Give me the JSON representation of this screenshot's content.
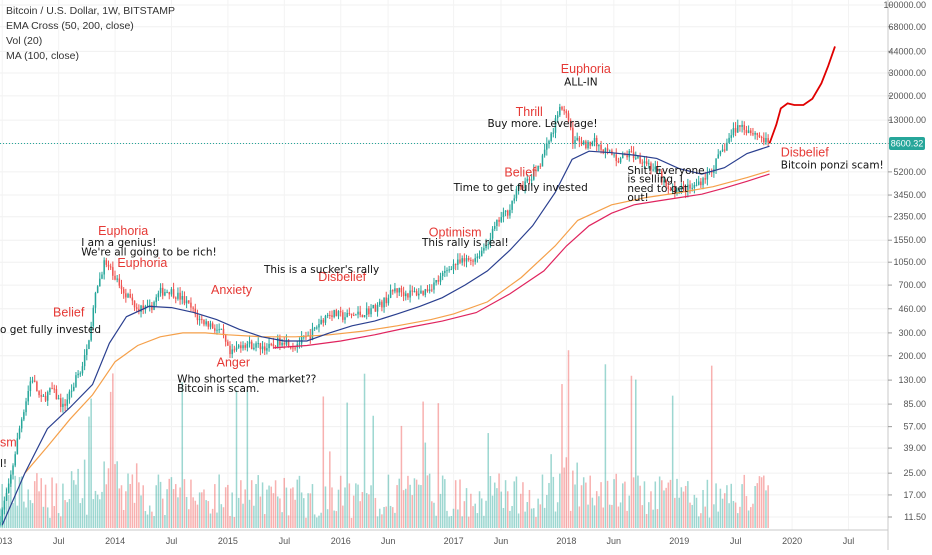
{
  "legend": {
    "symbol": "Bitcoin / U.S. Dollar, 1W, BITSTAMP",
    "ema": "EMA Cross (50, 200, close)",
    "vol": "Vol (20)",
    "ma": "MA (100, close)"
  },
  "price_label": "8600.32",
  "colors": {
    "up": "#26a69a",
    "down": "#ef5350",
    "ema50": "#2a3f8f",
    "ema200": "#f5a04a",
    "ma100": "#e0245e",
    "projection": "#e00000",
    "annotation_red": "#e53935",
    "price_line": "#26a69a"
  },
  "chart_data": {
    "type": "candlestick",
    "y_scale": "log",
    "ylim": [
      9,
      110000
    ],
    "y_ticks": [
      "100000.00",
      "68000.00",
      "44000.00",
      "30000.00",
      "20000.00",
      "13000.00",
      "8600.32",
      "5200.00",
      "3450.00",
      "2350.00",
      "1550.00",
      "1050.00",
      "700.00",
      "460.00",
      "300.00",
      "200.00",
      "130.00",
      "85.00",
      "57.00",
      "39.00",
      "25.00",
      "17.00",
      "11.50"
    ],
    "x_ticks": [
      "2013",
      "Jul",
      "2014",
      "Jul",
      "2015",
      "Jul",
      "2016",
      "Jun",
      "2017",
      "Jun",
      "2018",
      "Jun",
      "2019",
      "Jul",
      "2020",
      "Jul"
    ],
    "x_tick_dates": [
      2013.0,
      2013.5,
      2014.0,
      2014.5,
      2015.0,
      2015.5,
      2016.0,
      2016.42,
      2017.0,
      2017.42,
      2018.0,
      2018.42,
      2019.0,
      2019.5,
      2020.0,
      2020.5
    ],
    "price_path": [
      [
        2012.98,
        10
      ],
      [
        2013.08,
        20
      ],
      [
        2013.18,
        60
      ],
      [
        2013.28,
        140
      ],
      [
        2013.36,
        90
      ],
      [
        2013.46,
        110
      ],
      [
        2013.56,
        80
      ],
      [
        2013.66,
        125
      ],
      [
        2013.76,
        200
      ],
      [
        2013.85,
        600
      ],
      [
        2013.92,
        1050
      ],
      [
        2014.02,
        800
      ],
      [
        2014.12,
        600
      ],
      [
        2014.22,
        470
      ],
      [
        2014.32,
        450
      ],
      [
        2014.42,
        620
      ],
      [
        2014.5,
        640
      ],
      [
        2014.6,
        560
      ],
      [
        2014.68,
        480
      ],
      [
        2014.76,
        380
      ],
      [
        2014.86,
        350
      ],
      [
        2014.96,
        300
      ],
      [
        2015.04,
        200
      ],
      [
        2015.14,
        250
      ],
      [
        2015.26,
        240
      ],
      [
        2015.4,
        230
      ],
      [
        2015.5,
        270
      ],
      [
        2015.6,
        240
      ],
      [
        2015.74,
        280
      ],
      [
        2015.84,
        370
      ],
      [
        2015.92,
        430
      ],
      [
        2016.04,
        400
      ],
      [
        2016.2,
        420
      ],
      [
        2016.38,
        500
      ],
      [
        2016.5,
        650
      ],
      [
        2016.6,
        600
      ],
      [
        2016.75,
        620
      ],
      [
        2016.9,
        780
      ],
      [
        2017.0,
        1000
      ],
      [
        2017.1,
        1050
      ],
      [
        2017.22,
        1150
      ],
      [
        2017.3,
        1400
      ],
      [
        2017.42,
        2200
      ],
      [
        2017.5,
        2600
      ],
      [
        2017.6,
        4000
      ],
      [
        2017.7,
        4500
      ],
      [
        2017.8,
        6500
      ],
      [
        2017.9,
        11000
      ],
      [
        2017.96,
        17000
      ],
      [
        2018.02,
        14000
      ],
      [
        2018.08,
        9000
      ],
      [
        2018.18,
        8500
      ],
      [
        2018.26,
        9000
      ],
      [
        2018.38,
        7400
      ],
      [
        2018.48,
        6500
      ],
      [
        2018.58,
        7200
      ],
      [
        2018.7,
        6500
      ],
      [
        2018.84,
        5000
      ],
      [
        2018.92,
        3700
      ],
      [
        2019.0,
        3800
      ],
      [
        2019.14,
        3900
      ],
      [
        2019.3,
        5300
      ],
      [
        2019.42,
        8000
      ],
      [
        2019.5,
        10800
      ],
      [
        2019.56,
        12000
      ],
      [
        2019.64,
        10800
      ],
      [
        2019.72,
        10000
      ],
      [
        2019.8,
        8600
      ]
    ],
    "ema50_path": [
      [
        2013.0,
        10
      ],
      [
        2013.2,
        25
      ],
      [
        2013.4,
        55
      ],
      [
        2013.6,
        80
      ],
      [
        2013.8,
        120
      ],
      [
        2013.95,
        250
      ],
      [
        2014.1,
        400
      ],
      [
        2014.3,
        480
      ],
      [
        2014.5,
        470
      ],
      [
        2014.7,
        430
      ],
      [
        2014.9,
        380
      ],
      [
        2015.1,
        320
      ],
      [
        2015.3,
        280
      ],
      [
        2015.5,
        260
      ],
      [
        2015.7,
        260
      ],
      [
        2015.9,
        300
      ],
      [
        2016.1,
        340
      ],
      [
        2016.3,
        370
      ],
      [
        2016.5,
        420
      ],
      [
        2016.7,
        480
      ],
      [
        2016.9,
        560
      ],
      [
        2017.1,
        700
      ],
      [
        2017.3,
        900
      ],
      [
        2017.5,
        1300
      ],
      [
        2017.7,
        2000
      ],
      [
        2017.9,
        3600
      ],
      [
        2018.05,
        6500
      ],
      [
        2018.2,
        7500
      ],
      [
        2018.4,
        7300
      ],
      [
        2018.6,
        7000
      ],
      [
        2018.8,
        6600
      ],
      [
        2019.0,
        5500
      ],
      [
        2019.2,
        5000
      ],
      [
        2019.4,
        5600
      ],
      [
        2019.6,
        7200
      ],
      [
        2019.8,
        8200
      ]
    ],
    "ema200_path": [
      [
        2013.2,
        25
      ],
      [
        2013.4,
        40
      ],
      [
        2013.6,
        65
      ],
      [
        2013.8,
        100
      ],
      [
        2014.0,
        180
      ],
      [
        2014.2,
        240
      ],
      [
        2014.4,
        280
      ],
      [
        2014.6,
        300
      ],
      [
        2014.8,
        300
      ],
      [
        2015.0,
        290
      ],
      [
        2015.3,
        280
      ],
      [
        2015.6,
        280
      ],
      [
        2015.9,
        290
      ],
      [
        2016.2,
        310
      ],
      [
        2016.5,
        340
      ],
      [
        2016.8,
        380
      ],
      [
        2017.0,
        420
      ],
      [
        2017.3,
        520
      ],
      [
        2017.6,
        800
      ],
      [
        2017.9,
        1400
      ],
      [
        2018.1,
        2200
      ],
      [
        2018.4,
        2900
      ],
      [
        2018.7,
        3300
      ],
      [
        2019.0,
        3600
      ],
      [
        2019.3,
        4000
      ],
      [
        2019.6,
        4700
      ],
      [
        2019.8,
        5300
      ]
    ],
    "ma100_path": [
      [
        2015.4,
        230
      ],
      [
        2015.7,
        240
      ],
      [
        2016.0,
        260
      ],
      [
        2016.3,
        290
      ],
      [
        2016.6,
        330
      ],
      [
        2016.9,
        370
      ],
      [
        2017.2,
        430
      ],
      [
        2017.5,
        600
      ],
      [
        2017.8,
        900
      ],
      [
        2018.0,
        1400
      ],
      [
        2018.2,
        2000
      ],
      [
        2018.4,
        2500
      ],
      [
        2018.6,
        2900
      ],
      [
        2018.8,
        3100
      ],
      [
        2019.0,
        3300
      ],
      [
        2019.2,
        3500
      ],
      [
        2019.4,
        3900
      ],
      [
        2019.6,
        4400
      ],
      [
        2019.8,
        5000
      ]
    ],
    "projection_path": [
      [
        2019.8,
        8600
      ],
      [
        2019.86,
        12000
      ],
      [
        2019.9,
        16000
      ],
      [
        2019.96,
        17500
      ],
      [
        2020.02,
        17000
      ],
      [
        2020.1,
        17000
      ],
      [
        2020.18,
        19000
      ],
      [
        2020.26,
        25000
      ],
      [
        2020.32,
        34000
      ],
      [
        2020.38,
        48000
      ]
    ],
    "annotations": {
      "red": [
        {
          "text": "Euphoria",
          "x": 2013.85,
          "y": 1700
        },
        {
          "text": "Euphoria",
          "x": 2014.02,
          "y": 960
        },
        {
          "text": "Anxiety",
          "x": 2014.85,
          "y": 600
        },
        {
          "text": "Disbelief",
          "x": 2015.8,
          "y": 750
        },
        {
          "text": "Belief",
          "x": 2013.45,
          "y": 400
        },
        {
          "text": "Anger",
          "x": 2014.9,
          "y": 165
        },
        {
          "text": "Optimism",
          "x": 2016.78,
          "y": 1650
        },
        {
          "text": "Belief",
          "x": 2017.45,
          "y": 4800
        },
        {
          "text": "Thrill",
          "x": 2017.55,
          "y": 14000
        },
        {
          "text": "Euphoria",
          "x": 2017.95,
          "y": 30000
        },
        {
          "text": "Disbelief",
          "x": 2019.9,
          "y": 6800
        },
        {
          "text": "sm",
          "x": 2012.98,
          "y": 40
        }
      ],
      "black": [
        {
          "text": "I am a genius!",
          "x": 2013.7,
          "y": 1400
        },
        {
          "text": "We're all going to be rich!",
          "x": 2013.7,
          "y": 1180
        },
        {
          "text": "This is a sucker's rally",
          "x": 2015.32,
          "y": 870
        },
        {
          "text": "o get fully invested",
          "x": 2012.98,
          "y": 300
        },
        {
          "text": "Who shorted the market??",
          "x": 2014.55,
          "y": 125
        },
        {
          "text": "Bitcoin is scam.",
          "x": 2014.55,
          "y": 105
        },
        {
          "text": "This rally is real!",
          "x": 2016.72,
          "y": 1400
        },
        {
          "text": "Time to get fully invested",
          "x": 2017.0,
          "y": 3700
        },
        {
          "text": "Buy more. Leverage!",
          "x": 2017.3,
          "y": 11500
        },
        {
          "text": "ALL-IN",
          "x": 2017.98,
          "y": 24000
        },
        {
          "text": "Shit! Everyone",
          "x": 2018.54,
          "y": 5000
        },
        {
          "text": "is selling. I",
          "x": 2018.54,
          "y": 4300
        },
        {
          "text": "need to get",
          "x": 2018.54,
          "y": 3650
        },
        {
          "text": "out!",
          "x": 2018.54,
          "y": 3100
        },
        {
          "text": "Bitcoin ponzi scam!",
          "x": 2019.9,
          "y": 5500
        },
        {
          "text": "l!",
          "x": 2012.98,
          "y": 28
        }
      ]
    }
  }
}
